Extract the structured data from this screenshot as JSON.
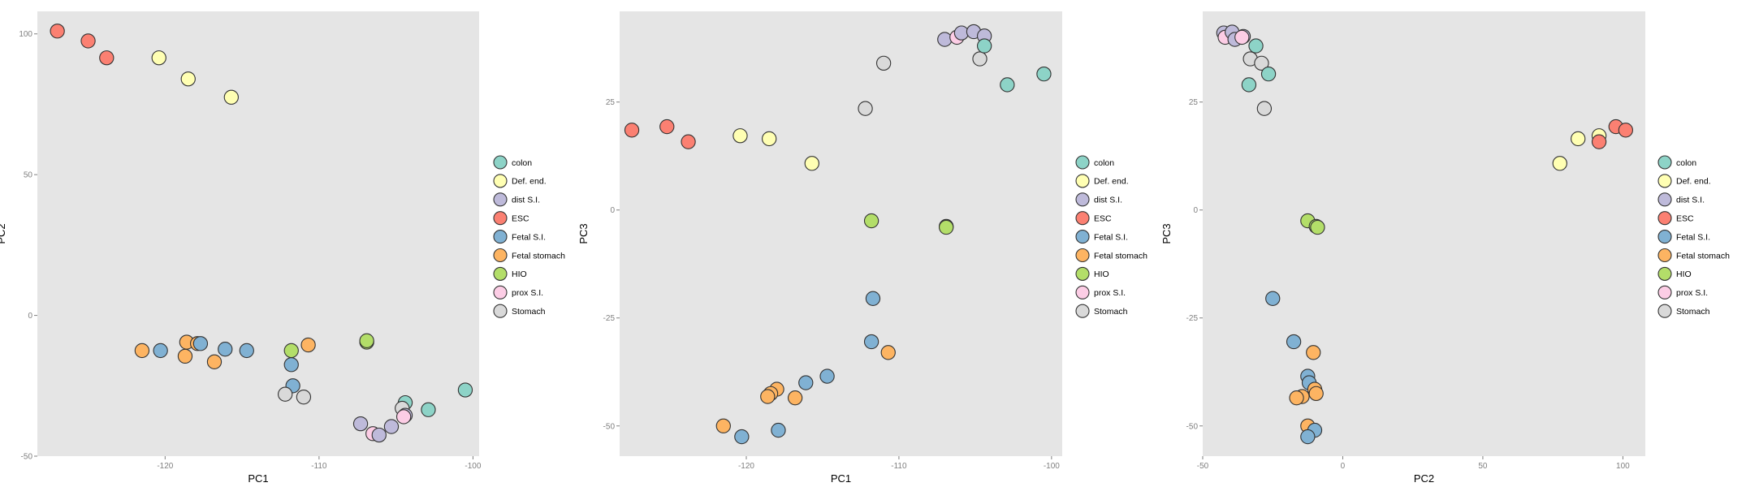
{
  "groups": {
    "colon": {
      "label": "colon",
      "color": "#8DD3C7"
    },
    "def_end": {
      "label": "Def. end.",
      "color": "#FFFFB3"
    },
    "dist_si": {
      "label": "dist S.I.",
      "color": "#BEBADA"
    },
    "esc": {
      "label": "ESC",
      "color": "#FB8072"
    },
    "fetal_si": {
      "label": "Fetal S.I.",
      "color": "#80B1D3"
    },
    "fetal_stomach": {
      "label": "Fetal stomach",
      "color": "#FDB462"
    },
    "hio": {
      "label": "HIO",
      "color": "#B3DE69"
    },
    "prox_si": {
      "label": "prox S.I.",
      "color": "#FCCDE5"
    },
    "stomach": {
      "label": "Stomach",
      "color": "#D9D9D9"
    }
  },
  "legend_order": [
    "colon",
    "def_end",
    "dist_si",
    "esc",
    "fetal_si",
    "fetal_stomach",
    "hio",
    "prox_si",
    "stomach"
  ],
  "chart_data": [
    {
      "type": "scatter",
      "xlabel": "PC1",
      "ylabel": "PC2",
      "xlim": [
        -128.3,
        -99.6
      ],
      "ylim": [
        -50,
        108
      ],
      "xticks": [
        -120,
        -110,
        -100
      ],
      "yticks": [
        -50,
        0,
        50,
        100
      ],
      "grid": false,
      "legend": "right",
      "points": [
        {
          "group": "esc",
          "x": -127.0,
          "y": 101
        },
        {
          "group": "esc",
          "x": -125.0,
          "y": 97.5
        },
        {
          "group": "esc",
          "x": -123.8,
          "y": 91.5
        },
        {
          "group": "def_end",
          "x": -120.4,
          "y": 91.5
        },
        {
          "group": "def_end",
          "x": -118.5,
          "y": 84
        },
        {
          "group": "def_end",
          "x": -115.7,
          "y": 77.5
        },
        {
          "group": "fetal_stomach",
          "x": -121.5,
          "y": -12.5
        },
        {
          "group": "fetal_si",
          "x": -120.3,
          "y": -12.5
        },
        {
          "group": "fetal_stomach",
          "x": -118.7,
          "y": -14.5
        },
        {
          "group": "fetal_stomach",
          "x": -118.6,
          "y": -9.5
        },
        {
          "group": "fetal_stomach",
          "x": -117.9,
          "y": -10
        },
        {
          "group": "fetal_si",
          "x": -117.7,
          "y": -10
        },
        {
          "group": "fetal_stomach",
          "x": -116.8,
          "y": -16.5
        },
        {
          "group": "fetal_si",
          "x": -116.1,
          "y": -12
        },
        {
          "group": "fetal_si",
          "x": -114.7,
          "y": -12.5
        },
        {
          "group": "hio",
          "x": -111.8,
          "y": -12.5
        },
        {
          "group": "fetal_si",
          "x": -111.8,
          "y": -17.5
        },
        {
          "group": "fetal_stomach",
          "x": -110.7,
          "y": -10.5
        },
        {
          "group": "fetal_si",
          "x": -111.7,
          "y": -25
        },
        {
          "group": "stomach",
          "x": -112.2,
          "y": -28
        },
        {
          "group": "stomach",
          "x": -111.0,
          "y": -29
        },
        {
          "group": "hio",
          "x": -106.9,
          "y": -9.5
        },
        {
          "group": "hio",
          "x": -106.9,
          "y": -9
        },
        {
          "group": "dist_si",
          "x": -107.3,
          "y": -38.5
        },
        {
          "group": "prox_si",
          "x": -106.5,
          "y": -42
        },
        {
          "group": "dist_si",
          "x": -106.1,
          "y": -42.5
        },
        {
          "group": "dist_si",
          "x": -105.3,
          "y": -39.5
        },
        {
          "group": "colon",
          "x": -104.4,
          "y": -31
        },
        {
          "group": "stomach",
          "x": -104.6,
          "y": -33
        },
        {
          "group": "dist_si",
          "x": -104.4,
          "y": -35.5
        },
        {
          "group": "prox_si",
          "x": -104.5,
          "y": -36
        },
        {
          "group": "colon",
          "x": -102.9,
          "y": -33.5
        },
        {
          "group": "colon",
          "x": -100.5,
          "y": -26.5
        }
      ]
    },
    {
      "type": "scatter",
      "xlabel": "PC1",
      "ylabel": "PC3",
      "xlim": [
        -128.3,
        -99.3
      ],
      "ylim": [
        -57,
        46
      ],
      "xticks": [
        -120,
        -110,
        -100
      ],
      "yticks": [
        -50,
        -25,
        0,
        25
      ],
      "grid": false,
      "legend": "right",
      "points": [
        {
          "group": "esc",
          "x": -127.5,
          "y": 18.5
        },
        {
          "group": "esc",
          "x": -125.2,
          "y": 19.3
        },
        {
          "group": "esc",
          "x": -123.8,
          "y": 15.8
        },
        {
          "group": "def_end",
          "x": -120.4,
          "y": 17.2
        },
        {
          "group": "def_end",
          "x": -118.5,
          "y": 16.5
        },
        {
          "group": "def_end",
          "x": -115.7,
          "y": 10.8
        },
        {
          "group": "stomach",
          "x": -112.2,
          "y": 23.5
        },
        {
          "group": "stomach",
          "x": -111.0,
          "y": 34
        },
        {
          "group": "dist_si",
          "x": -107.0,
          "y": 39.5
        },
        {
          "group": "prox_si",
          "x": -106.2,
          "y": 40
        },
        {
          "group": "dist_si",
          "x": -105.9,
          "y": 41
        },
        {
          "group": "dist_si",
          "x": -105.1,
          "y": 41.3
        },
        {
          "group": "dist_si",
          "x": -104.4,
          "y": 40.3
        },
        {
          "group": "stomach",
          "x": -104.7,
          "y": 35
        },
        {
          "group": "colon",
          "x": -104.4,
          "y": 38
        },
        {
          "group": "colon",
          "x": -102.9,
          "y": 29
        },
        {
          "group": "colon",
          "x": -100.5,
          "y": 31.5
        },
        {
          "group": "hio",
          "x": -111.8,
          "y": -2.5
        },
        {
          "group": "hio",
          "x": -106.9,
          "y": -3.8
        },
        {
          "group": "hio",
          "x": -106.9,
          "y": -4
        },
        {
          "group": "fetal_si",
          "x": -111.7,
          "y": -20.5
        },
        {
          "group": "fetal_si",
          "x": -111.8,
          "y": -30.5
        },
        {
          "group": "fetal_stomach",
          "x": -110.7,
          "y": -33
        },
        {
          "group": "fetal_si",
          "x": -114.7,
          "y": -38.5
        },
        {
          "group": "fetal_si",
          "x": -116.1,
          "y": -40
        },
        {
          "group": "fetal_stomach",
          "x": -116.8,
          "y": -43.5
        },
        {
          "group": "fetal_stomach",
          "x": -118.0,
          "y": -41.5
        },
        {
          "group": "fetal_stomach",
          "x": -118.4,
          "y": -42.5
        },
        {
          "group": "fetal_stomach",
          "x": -118.6,
          "y": -43.2
        },
        {
          "group": "fetal_stomach",
          "x": -121.5,
          "y": -50
        },
        {
          "group": "fetal_si",
          "x": -120.3,
          "y": -52.5
        },
        {
          "group": "fetal_si",
          "x": -117.9,
          "y": -51
        }
      ]
    },
    {
      "type": "scatter",
      "xlabel": "PC2",
      "ylabel": "PC3",
      "xlim": [
        -50,
        108
      ],
      "ylim": [
        -57,
        46
      ],
      "xticks": [
        -50,
        0,
        50,
        100
      ],
      "yticks": [
        -50,
        -25,
        0,
        25
      ],
      "grid": false,
      "legend": "right",
      "points": [
        {
          "group": "dist_si",
          "x": -42.5,
          "y": 41
        },
        {
          "group": "prox_si",
          "x": -42,
          "y": 40
        },
        {
          "group": "dist_si",
          "x": -39.5,
          "y": 41.2
        },
        {
          "group": "dist_si",
          "x": -38.5,
          "y": 39.5
        },
        {
          "group": "dist_si",
          "x": -35.5,
          "y": 40.2
        },
        {
          "group": "prox_si",
          "x": -36,
          "y": 40
        },
        {
          "group": "colon",
          "x": -31,
          "y": 38
        },
        {
          "group": "stomach",
          "x": -33,
          "y": 35
        },
        {
          "group": "stomach",
          "x": -29,
          "y": 34
        },
        {
          "group": "colon",
          "x": -26.5,
          "y": 31.5
        },
        {
          "group": "colon",
          "x": -33.5,
          "y": 29
        },
        {
          "group": "stomach",
          "x": -28,
          "y": 23.5
        },
        {
          "group": "def_end",
          "x": 77.5,
          "y": 10.8
        },
        {
          "group": "def_end",
          "x": 84,
          "y": 16.5
        },
        {
          "group": "def_end",
          "x": 91.5,
          "y": 17.2
        },
        {
          "group": "esc",
          "x": 91.5,
          "y": 15.8
        },
        {
          "group": "esc",
          "x": 97.5,
          "y": 19.3
        },
        {
          "group": "esc",
          "x": 101,
          "y": 18.5
        },
        {
          "group": "hio",
          "x": -12.5,
          "y": -2.5
        },
        {
          "group": "hio",
          "x": -9.5,
          "y": -3.8
        },
        {
          "group": "hio",
          "x": -9,
          "y": -4
        },
        {
          "group": "fetal_si",
          "x": -25,
          "y": -20.5
        },
        {
          "group": "fetal_si",
          "x": -17.5,
          "y": -30.5
        },
        {
          "group": "fetal_stomach",
          "x": -10.5,
          "y": -33
        },
        {
          "group": "fetal_si",
          "x": -12.5,
          "y": -38.5
        },
        {
          "group": "fetal_si",
          "x": -12,
          "y": -40
        },
        {
          "group": "fetal_stomach",
          "x": -10,
          "y": -41.5
        },
        {
          "group": "fetal_stomach",
          "x": -9.5,
          "y": -42.5
        },
        {
          "group": "fetal_stomach",
          "x": -14.5,
          "y": -43.2
        },
        {
          "group": "fetal_stomach",
          "x": -16.5,
          "y": -43.5
        },
        {
          "group": "fetal_stomach",
          "x": -12.5,
          "y": -50
        },
        {
          "group": "fetal_si",
          "x": -10,
          "y": -51
        },
        {
          "group": "fetal_si",
          "x": -12.5,
          "y": -52.5
        }
      ]
    }
  ]
}
